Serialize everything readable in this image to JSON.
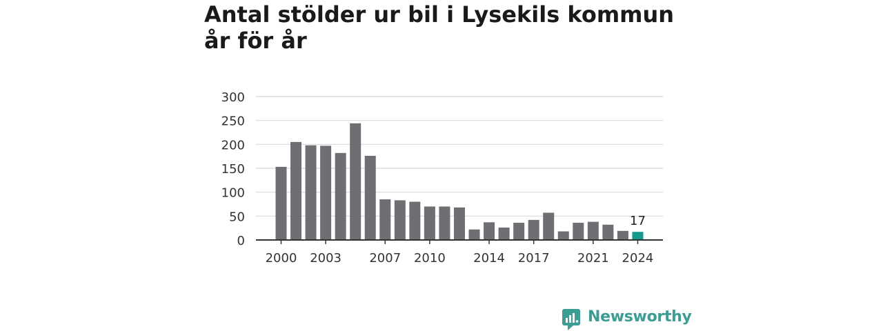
{
  "chart_data": {
    "type": "bar",
    "title": "Antal stölder ur bil i Lysekils kommun år för år",
    "x": [
      2000,
      2001,
      2002,
      2003,
      2004,
      2005,
      2006,
      2007,
      2008,
      2009,
      2010,
      2011,
      2012,
      2013,
      2014,
      2015,
      2016,
      2017,
      2018,
      2019,
      2020,
      2021,
      2022,
      2023,
      2024
    ],
    "values": [
      153,
      205,
      198,
      197,
      182,
      244,
      176,
      85,
      83,
      80,
      70,
      70,
      68,
      22,
      37,
      26,
      36,
      42,
      57,
      18,
      36,
      38,
      32,
      19,
      17
    ],
    "x_tick_labels": [
      "2000",
      "2003",
      "2007",
      "2010",
      "2014",
      "2017",
      "2021",
      "2024"
    ],
    "y_ticks": [
      "0",
      "50",
      "100",
      "150",
      "200",
      "250",
      "300"
    ],
    "ylim": [
      0,
      300
    ],
    "highlight": {
      "x": 2024,
      "label": "17"
    },
    "grid": true,
    "colors": {
      "bar": "#6f6e73",
      "highlight": "#159b8e",
      "grid": "#d8d8d8",
      "axis": "#333333"
    }
  },
  "logo": {
    "text": "Newsworthy",
    "color": "#3a9e94"
  }
}
